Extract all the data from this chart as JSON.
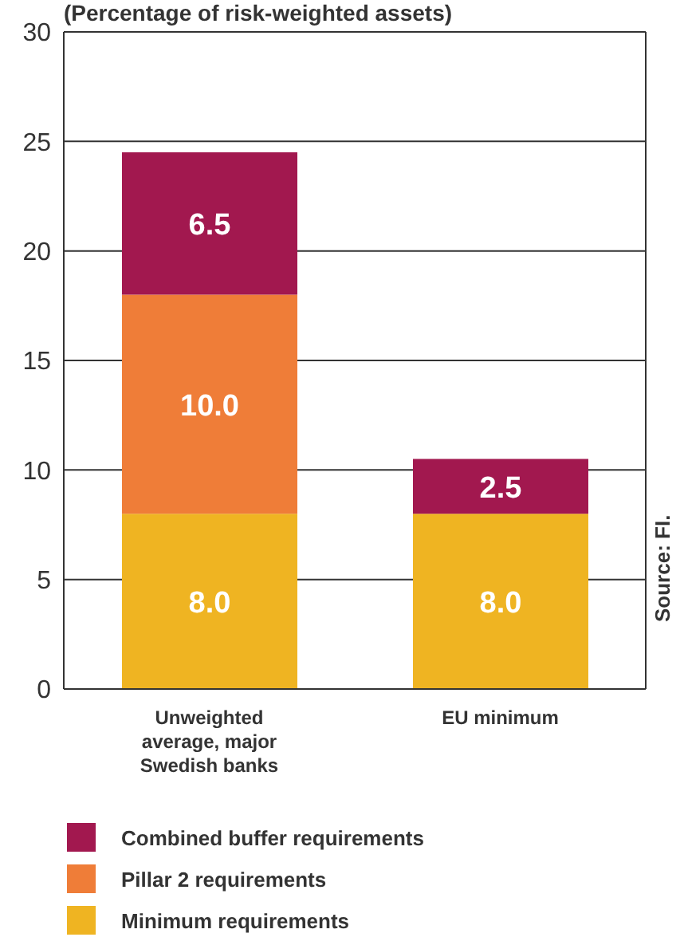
{
  "chart_data": {
    "type": "bar",
    "stacked": true,
    "title": "(Percentage of risk-weighted assets)",
    "categories": [
      "Unweighted average, major Swedish banks",
      "EU minimum"
    ],
    "series": [
      {
        "name": "Minimum requirements",
        "color": "#efb422",
        "values": [
          8.0,
          8.0
        ],
        "value_labels": [
          "8.0",
          "8.0"
        ]
      },
      {
        "name": "Pillar 2 requirements",
        "color": "#ef7d38",
        "values": [
          10.0,
          null
        ],
        "value_labels": [
          "10.0",
          null
        ]
      },
      {
        "name": "Combined buffer requirements",
        "color": "#a2184f",
        "values": [
          6.5,
          2.5
        ],
        "value_labels": [
          "6.5",
          "2.5"
        ]
      }
    ],
    "ylim": [
      0,
      30
    ],
    "yticks": [
      0,
      5,
      10,
      15,
      20,
      25,
      30
    ],
    "grid": "y",
    "legend": "bottom",
    "annotations": [
      "Source: FI."
    ]
  }
}
